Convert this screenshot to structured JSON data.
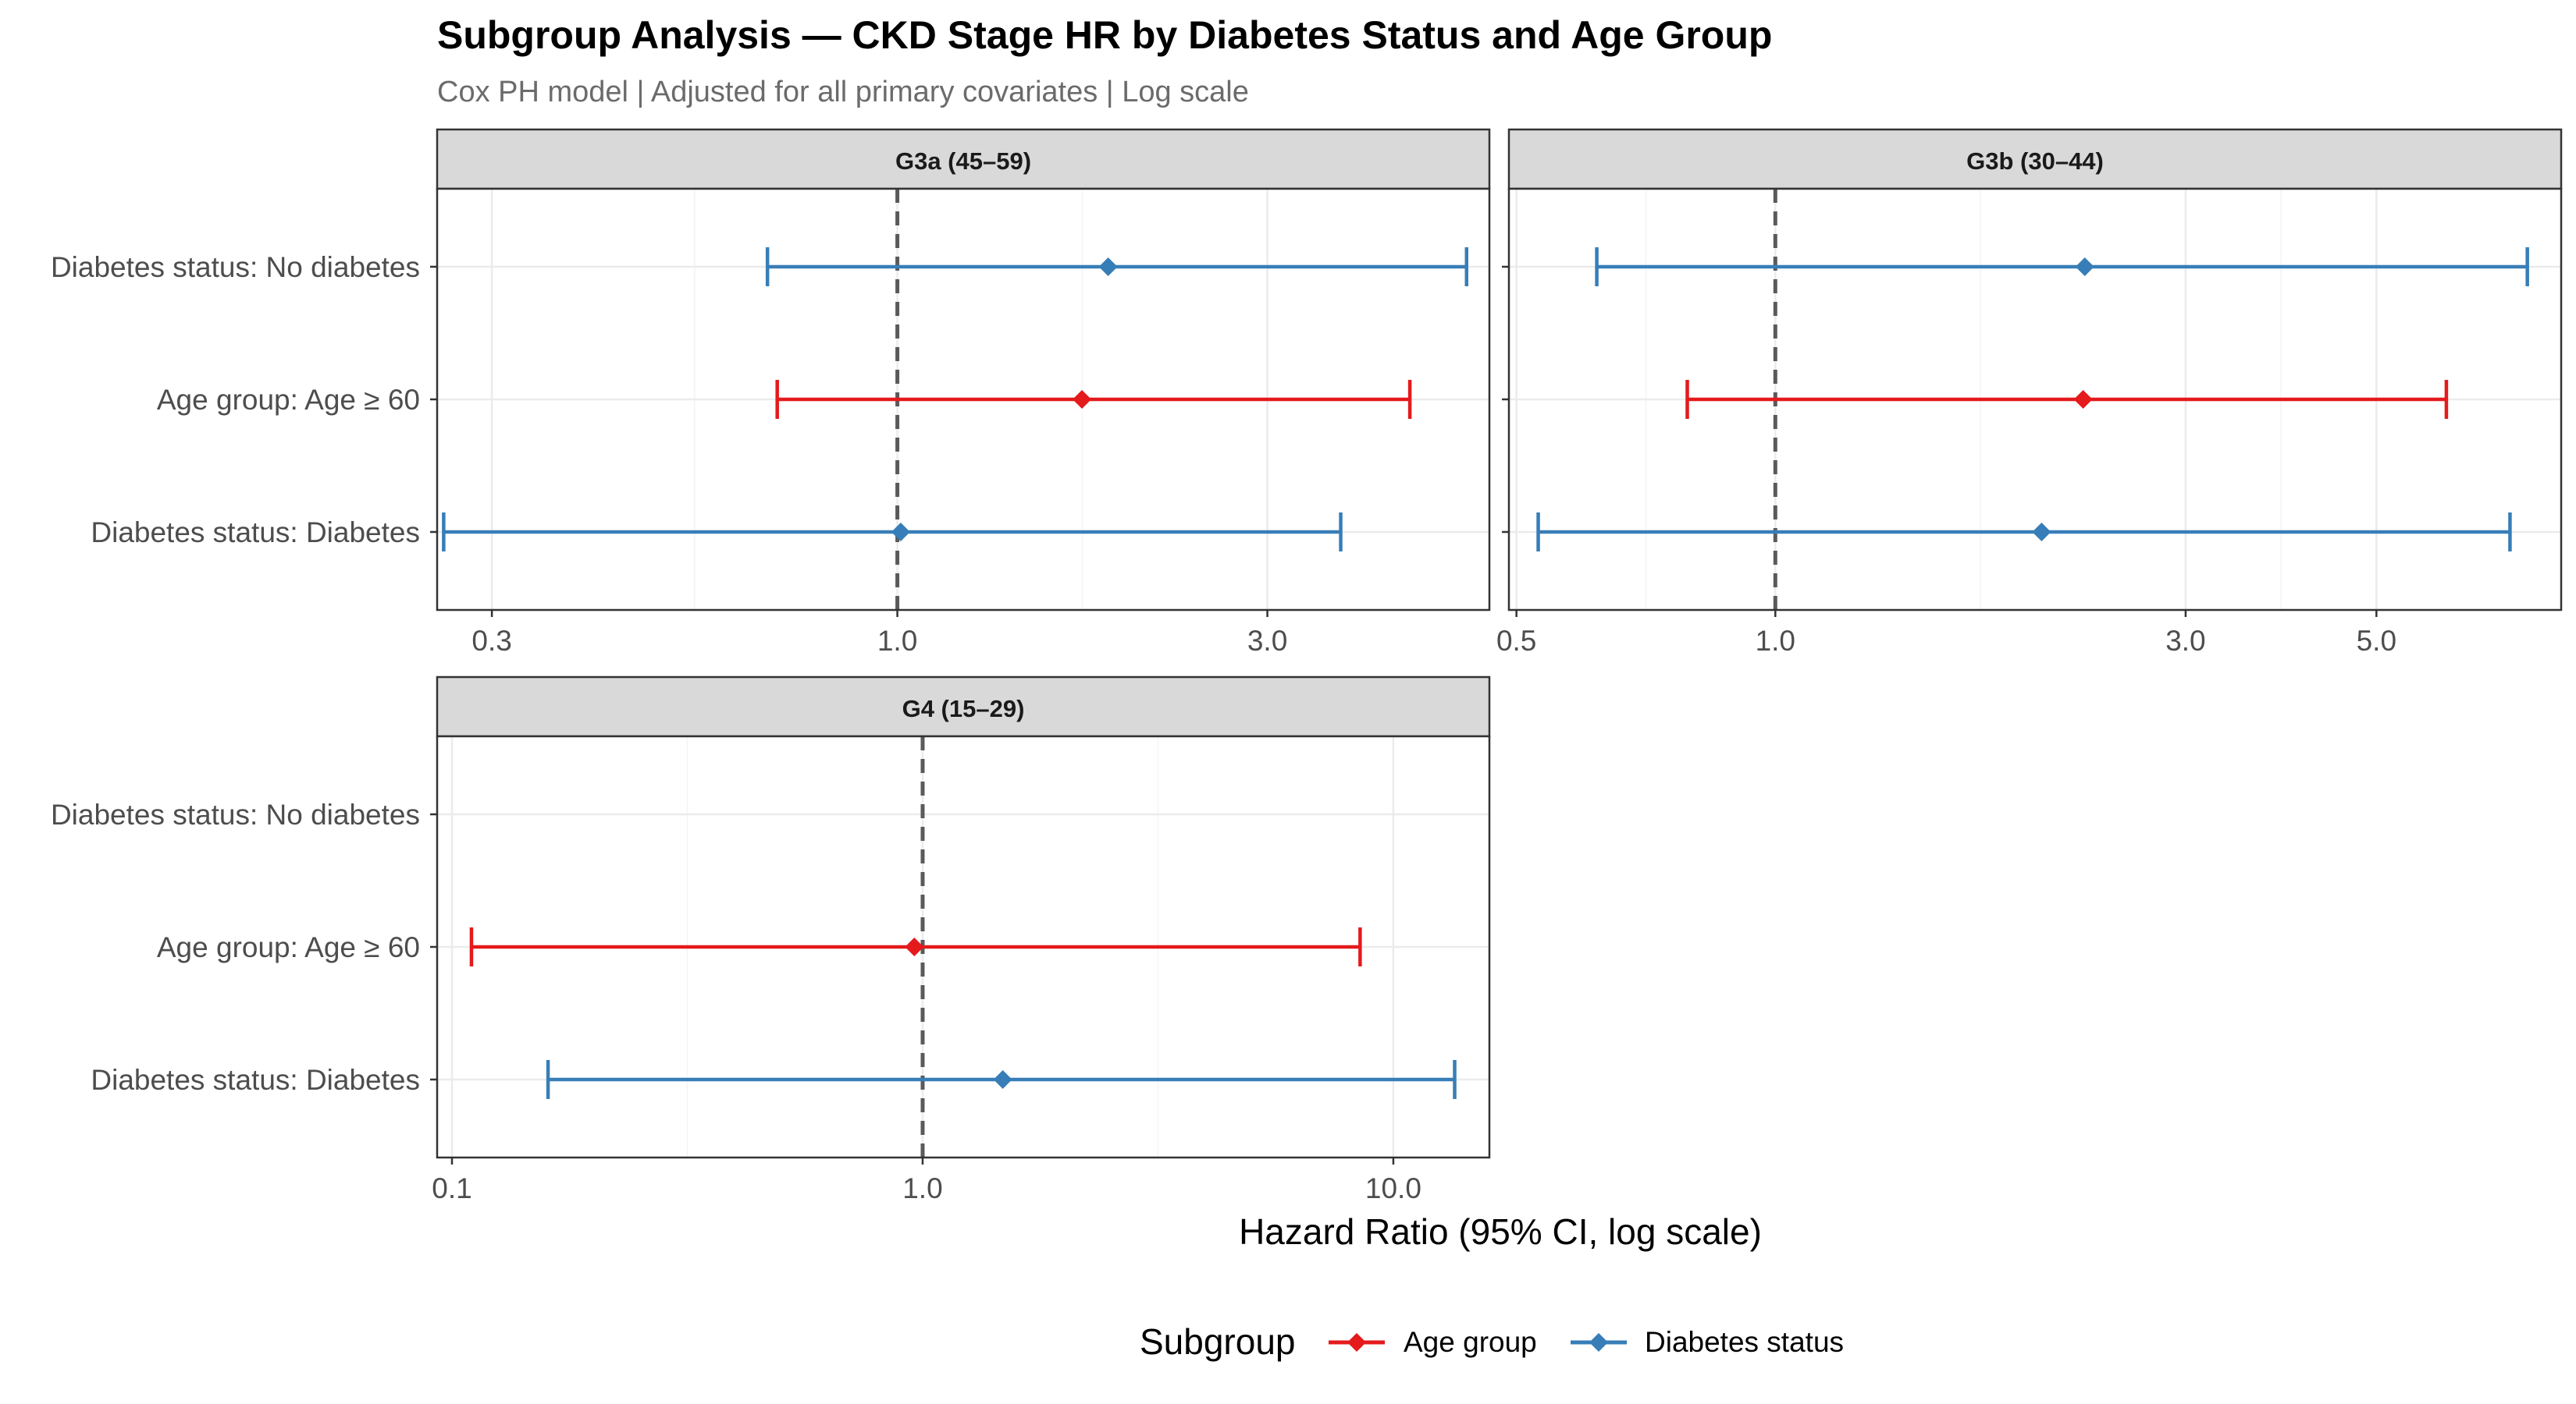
{
  "title": "Subgroup Analysis — CKD Stage HR by Diabetes Status and Age Group",
  "subtitle": "Cox PH model | Adjusted for all primary covariates | Log scale",
  "xlabel": "Hazard Ratio (95% CI, log scale)",
  "legend": {
    "title": "Subgroup",
    "items": [
      {
        "label": "Age group",
        "color": "#e41a1c"
      },
      {
        "label": "Diabetes status",
        "color": "#377eb8"
      }
    ]
  },
  "chart_data": {
    "type": "forest",
    "x_scale": "log",
    "reference_line": 1.0,
    "rows": [
      "Diabetes status: No diabetes",
      "Age group: Age ≥ 60",
      "Diabetes status: Diabetes"
    ],
    "panels": [
      {
        "strip": "G3a (45–59)",
        "xlim": [
          0.255,
          5.8
        ],
        "xticks": [
          {
            "value": 0.3,
            "label": "0.3"
          },
          {
            "value": 1.0,
            "label": "1.0"
          },
          {
            "value": 3.0,
            "label": "3.0"
          }
        ],
        "points": [
          {
            "row": "Diabetes status: No diabetes",
            "group": "Diabetes status",
            "hr": 1.87,
            "lo": 0.68,
            "hi": 5.42
          },
          {
            "row": "Age group: Age ≥ 60",
            "group": "Age group",
            "hr": 1.73,
            "lo": 0.7,
            "hi": 4.58
          },
          {
            "row": "Diabetes status: Diabetes",
            "group": "Diabetes status",
            "hr": 1.01,
            "lo": 0.26,
            "hi": 3.73
          }
        ]
      },
      {
        "strip": "G3b (30–44)",
        "xlim": [
          0.49,
          8.2
        ],
        "xticks": [
          {
            "value": 0.5,
            "label": "0.5"
          },
          {
            "value": 1.0,
            "label": "1.0"
          },
          {
            "value": 3.0,
            "label": "3.0"
          },
          {
            "value": 5.0,
            "label": "5.0"
          }
        ],
        "points": [
          {
            "row": "Diabetes status: No diabetes",
            "group": "Diabetes status",
            "hr": 2.29,
            "lo": 0.62,
            "hi": 7.49
          },
          {
            "row": "Age group: Age ≥ 60",
            "group": "Age group",
            "hr": 2.28,
            "lo": 0.79,
            "hi": 6.03
          },
          {
            "row": "Diabetes status: Diabetes",
            "group": "Diabetes status",
            "hr": 2.04,
            "lo": 0.53,
            "hi": 7.15
          }
        ]
      },
      {
        "strip": "G4 (15–29)",
        "xlim": [
          0.093,
          16.0
        ],
        "xticks": [
          {
            "value": 0.1,
            "label": "0.1"
          },
          {
            "value": 1.0,
            "label": "1.0"
          },
          {
            "value": 10.0,
            "label": "10.0"
          }
        ],
        "points": [
          {
            "row": "Age group: Age ≥ 60",
            "group": "Age group",
            "hr": 0.96,
            "lo": 0.11,
            "hi": 8.5
          },
          {
            "row": "Diabetes status: Diabetes",
            "group": "Diabetes status",
            "hr": 1.48,
            "lo": 0.16,
            "hi": 13.5
          }
        ]
      }
    ]
  }
}
